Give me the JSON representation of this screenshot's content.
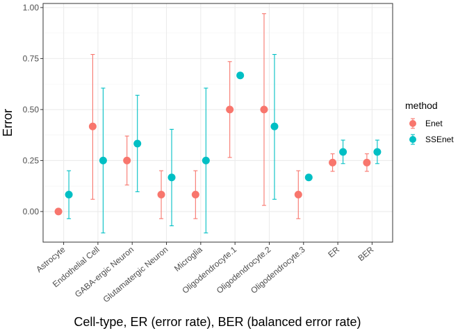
{
  "chart_data": {
    "type": "scatter",
    "subtype": "point-with-errorbars",
    "title": "",
    "xlabel": "Cell-type, ER (error rate), BER (balanced error rate)",
    "ylabel": "Error",
    "ylim": [
      -0.15,
      1.02
    ],
    "yticks": [
      0.0,
      0.25,
      0.5,
      0.75,
      1.0
    ],
    "ytick_labels": [
      "0.00",
      "0.25",
      "0.50",
      "0.75",
      "1.00"
    ],
    "grid": true,
    "legend": {
      "title": "method",
      "position": "right"
    },
    "categories": [
      "Astrocyte",
      "Endothelial Cell",
      "GABA-ergic Neuron",
      "Glutamatergic Neuron",
      "Microglia",
      "Oligodendrocyte.1",
      "Oligodendrocyte.2",
      "Oligodendrocyte.3",
      "ER",
      "BER"
    ],
    "series": [
      {
        "name": "Enet",
        "color": "#F8766D",
        "values": [
          0.0,
          0.417,
          0.25,
          0.083,
          0.083,
          0.5,
          0.5,
          0.083,
          0.24,
          0.24
        ],
        "lower": [
          null,
          0.06,
          0.13,
          -0.035,
          -0.035,
          0.265,
          0.03,
          -0.035,
          0.197,
          0.197
        ],
        "upper": [
          null,
          0.77,
          0.37,
          0.2,
          0.2,
          0.735,
          0.97,
          0.2,
          0.283,
          0.283
        ]
      },
      {
        "name": "SSEnet",
        "color": "#00BFC4",
        "values": [
          0.083,
          0.25,
          0.333,
          0.167,
          0.25,
          0.667,
          0.417,
          0.167,
          0.292,
          0.292
        ],
        "lower": [
          -0.035,
          -0.105,
          0.097,
          -0.07,
          -0.105,
          null,
          0.06,
          null,
          0.235,
          0.235
        ],
        "upper": [
          0.2,
          0.605,
          0.57,
          0.403,
          0.605,
          null,
          0.77,
          null,
          0.35,
          0.35
        ]
      }
    ]
  }
}
